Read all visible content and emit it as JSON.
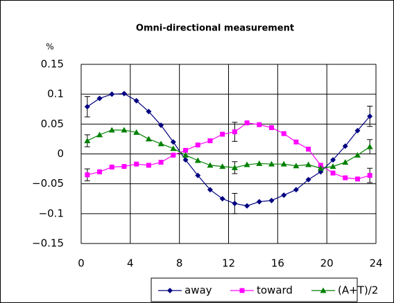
{
  "chart_data": {
    "type": "line",
    "title": "Omni-directional measurement",
    "y_label": "%",
    "x": [
      0.5,
      1.5,
      2.5,
      3.5,
      4.5,
      5.5,
      6.5,
      7.5,
      8.5,
      9.5,
      10.5,
      11.5,
      12.5,
      13.5,
      14.5,
      15.5,
      16.5,
      17.5,
      18.5,
      19.5,
      20.5,
      21.5,
      22.5,
      23.5
    ],
    "series": [
      {
        "name": "away",
        "color": "#000080",
        "marker": "diamond",
        "values": [
          0.079,
          0.093,
          0.1,
          0.101,
          0.089,
          0.071,
          0.048,
          0.02,
          -0.01,
          -0.036,
          -0.06,
          -0.075,
          -0.083,
          -0.087,
          -0.08,
          -0.078,
          -0.069,
          -0.06,
          -0.043,
          -0.03,
          -0.01,
          0.013,
          0.039,
          0.063
        ],
        "errors": [
          0.017,
          null,
          null,
          null,
          null,
          null,
          null,
          null,
          null,
          null,
          null,
          null,
          0.017,
          null,
          null,
          null,
          null,
          null,
          null,
          null,
          null,
          null,
          null,
          0.017
        ]
      },
      {
        "name": "toward",
        "color": "#ff00ff",
        "marker": "square",
        "values": [
          -0.035,
          -0.03,
          -0.022,
          -0.021,
          -0.017,
          -0.019,
          -0.014,
          -0.002,
          0.006,
          0.015,
          0.022,
          0.033,
          0.037,
          0.052,
          0.049,
          0.044,
          0.034,
          0.02,
          0.008,
          -0.019,
          -0.032,
          -0.04,
          -0.042,
          -0.036
        ],
        "errors": [
          0.01,
          null,
          null,
          null,
          null,
          null,
          null,
          null,
          null,
          null,
          null,
          null,
          0.016,
          null,
          null,
          null,
          null,
          null,
          null,
          null,
          null,
          null,
          null,
          0.012
        ]
      },
      {
        "name": "(A+T)/2",
        "color": "#008000",
        "marker": "triangle",
        "values": [
          0.022,
          0.032,
          0.04,
          0.04,
          0.036,
          0.025,
          0.017,
          0.009,
          -0.002,
          -0.011,
          -0.019,
          -0.021,
          -0.023,
          -0.018,
          -0.016,
          -0.017,
          -0.017,
          -0.02,
          -0.018,
          -0.024,
          -0.021,
          -0.014,
          -0.002,
          0.012
        ],
        "errors": [
          0.01,
          null,
          null,
          null,
          null,
          null,
          null,
          null,
          null,
          null,
          null,
          null,
          0.01,
          null,
          null,
          null,
          null,
          null,
          null,
          null,
          null,
          null,
          null,
          0.012
        ]
      }
    ],
    "xlim": [
      0,
      24
    ],
    "xticks": [
      0,
      4,
      8,
      12,
      16,
      20,
      24
    ],
    "ylim": [
      -0.15,
      0.15
    ],
    "yticks": [
      {
        "value": -0.15,
        "label": "−0.15"
      },
      {
        "value": -0.1,
        "label": "−0.1"
      },
      {
        "value": -0.05,
        "label": "−0.05"
      },
      0,
      0.05,
      0.1,
      0.15
    ],
    "grid": true,
    "legend": "bottom"
  }
}
